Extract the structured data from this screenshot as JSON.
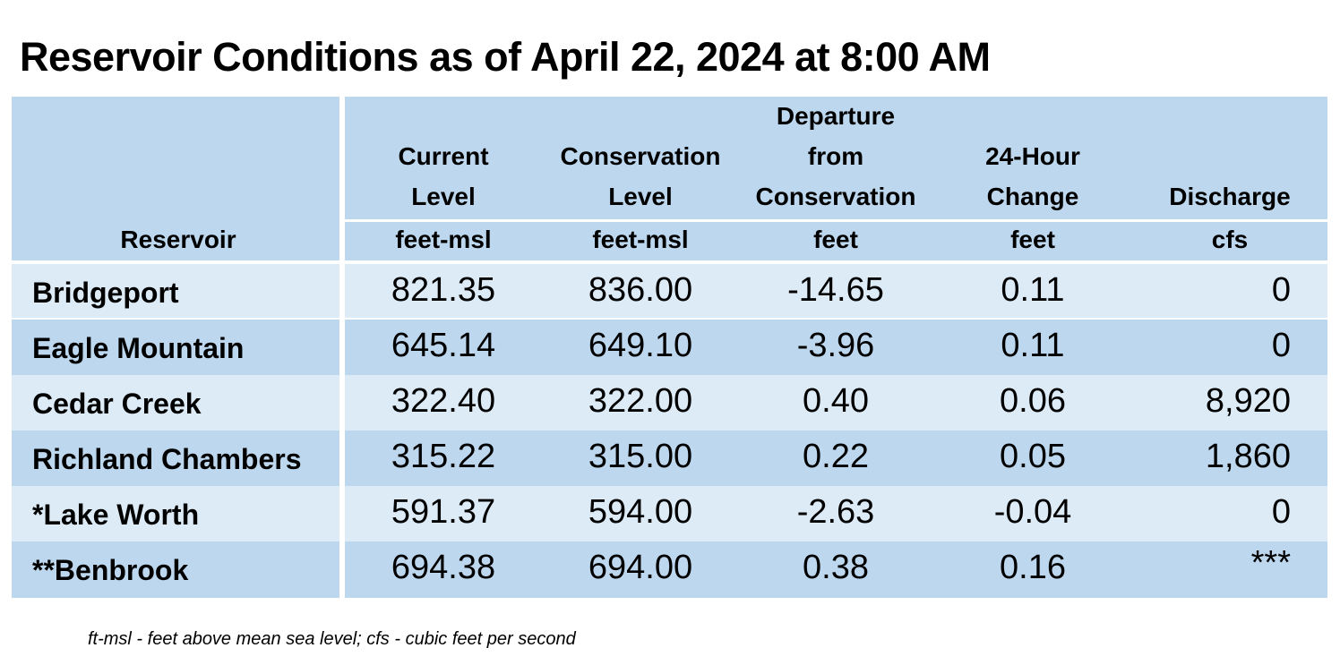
{
  "title": "Reservoir Conditions as of April 22, 2024 at 8:00 AM",
  "table": {
    "headers": {
      "reservoir": "Reservoir",
      "current_l1": "Current",
      "current_l2": "Level",
      "current_unit": "feet-msl",
      "conservation_l1": "Conservation",
      "conservation_l2": "Level",
      "conservation_unit": "feet-msl",
      "departure_l1": "Departure",
      "departure_l2": "from",
      "departure_l3": "Conservation",
      "departure_unit": "feet",
      "change_l1": "24-Hour",
      "change_l2": "Change",
      "change_unit": "feet",
      "discharge_l1": "Discharge",
      "discharge_unit": "cfs"
    },
    "rows": [
      {
        "name": "Bridgeport",
        "current": "821.35",
        "conservation": "836.00",
        "departure": "-14.65",
        "change": "0.11",
        "discharge": "0"
      },
      {
        "name": "Eagle Mountain",
        "current": "645.14",
        "conservation": "649.10",
        "departure": "-3.96",
        "change": "0.11",
        "discharge": "0"
      },
      {
        "name": "Cedar Creek",
        "current": "322.40",
        "conservation": "322.00",
        "departure": "0.40",
        "change": "0.06",
        "discharge": "8,920"
      },
      {
        "name": "Richland Chambers",
        "current": "315.22",
        "conservation": "315.00",
        "departure": "0.22",
        "change": "0.05",
        "discharge": "1,860"
      },
      {
        "name": "*Lake Worth",
        "current": "591.37",
        "conservation": "594.00",
        "departure": "-2.63",
        "change": "-0.04",
        "discharge": "0"
      },
      {
        "name": "**Benbrook",
        "current": "694.38",
        "conservation": "694.00",
        "departure": "0.38",
        "change": "0.16",
        "discharge": "***"
      }
    ]
  },
  "footnote": "ft-msl - feet above mean sea level; cfs - cubic feet per second",
  "colors": {
    "header_bg": "#bdd7ee",
    "row_light": "#ddebf7",
    "row_dark": "#bdd7ee"
  }
}
